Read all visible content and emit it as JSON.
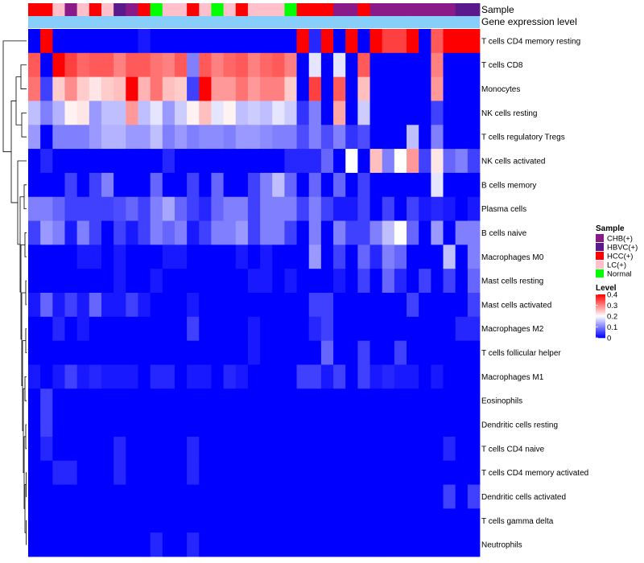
{
  "chart_data": {
    "type": "heatmap",
    "annotation_labels": {
      "sample": "Sample",
      "gene_level": "Gene expression level"
    },
    "rows": [
      "T cells CD4 memory resting",
      "T cells CD8",
      "Monocytes",
      "NK cells resting",
      "T cells regulatory  Tregs",
      "NK cells activated",
      "B cells memory",
      "Plasma cells",
      "B cells naive",
      "Macrophages M0",
      "Mast cells resting",
      "Mast cells activated",
      "Macrophages M2",
      "T cells follicular helper",
      "Macrophages M1",
      "Eosinophils",
      "Dendritic cells resting",
      "T cells CD4 naive",
      "T cells CD4 memory activated",
      "Dendritic cells activated",
      "T cells gamma delta",
      "Neutrophils"
    ],
    "sample_groups": [
      "HCC(+)",
      "HCC(+)",
      "LC(+)",
      "CHB(+)",
      "LC(+)",
      "HCC(+)",
      "LC(+)",
      "HBVC(+)",
      "CHB(+)",
      "HCC(+)",
      "Normal",
      "LC(+)",
      "LC(+)",
      "HCC(+)",
      "LC(+)",
      "Normal",
      "LC(+)",
      "HCC(+)",
      "LC(+)",
      "LC(+)",
      "LC(+)",
      "Normal",
      "HCC(+)",
      "HCC(+)",
      "HCC(+)",
      "CHB(+)",
      "CHB(+)",
      "HCC(+)",
      "CHB(+)",
      "CHB(+)",
      "CHB(+)",
      "CHB(+)",
      "CHB(+)",
      "CHB(+)",
      "CHB(+)",
      "HBVC(+)",
      "HBVC(+)"
    ],
    "values": [
      [
        0.0,
        0.4,
        0.0,
        0.0,
        0.0,
        0.0,
        0.0,
        0.0,
        0.0,
        0.02,
        0.0,
        0.0,
        0.0,
        0.0,
        0.0,
        0.0,
        0.0,
        0.0,
        0.0,
        0.0,
        0.0,
        0.0,
        0.4,
        0.03,
        0.4,
        0.0,
        0.4,
        0.0,
        0.4,
        0.35,
        0.35,
        0.4,
        0.0,
        0.33,
        0.4,
        0.4,
        0.4
      ],
      [
        0.33,
        0.0,
        0.4,
        0.35,
        0.32,
        0.33,
        0.33,
        0.3,
        0.33,
        0.33,
        0.31,
        0.3,
        0.33,
        0.1,
        0.33,
        0.3,
        0.32,
        0.33,
        0.3,
        0.32,
        0.33,
        0.3,
        0.0,
        0.18,
        0.0,
        0.18,
        0.0,
        0.33,
        0.0,
        0.0,
        0.0,
        0.0,
        0.0,
        0.3,
        0.0,
        0.0,
        0.0
      ],
      [
        0.31,
        0.05,
        0.24,
        0.29,
        0.24,
        0.22,
        0.24,
        0.25,
        0.4,
        0.26,
        0.31,
        0.25,
        0.24,
        0.05,
        0.4,
        0.28,
        0.28,
        0.31,
        0.28,
        0.3,
        0.3,
        0.24,
        0.0,
        0.35,
        0.0,
        0.33,
        0.0,
        0.25,
        0.0,
        0.0,
        0.0,
        0.0,
        0.0,
        0.28,
        0.0,
        0.0,
        0.0
      ],
      [
        0.15,
        0.1,
        0.14,
        0.21,
        0.22,
        0.12,
        0.15,
        0.15,
        0.28,
        0.15,
        0.18,
        0.12,
        0.16,
        0.21,
        0.25,
        0.18,
        0.21,
        0.15,
        0.16,
        0.15,
        0.18,
        0.16,
        0.04,
        0.1,
        0.0,
        0.27,
        0.0,
        0.16,
        0.0,
        0.0,
        0.0,
        0.0,
        0.0,
        0.05,
        0.0,
        0.0,
        0.0
      ],
      [
        0.12,
        0.0,
        0.1,
        0.1,
        0.1,
        0.12,
        0.14,
        0.14,
        0.12,
        0.12,
        0.15,
        0.1,
        0.12,
        0.1,
        0.11,
        0.11,
        0.1,
        0.12,
        0.12,
        0.11,
        0.1,
        0.1,
        0.06,
        0.1,
        0.06,
        0.1,
        0.04,
        0.06,
        0.0,
        0.0,
        0.0,
        0.15,
        0.0,
        0.1,
        0.0,
        0.0,
        0.0
      ],
      [
        0.0,
        0.03,
        0.0,
        0.0,
        0.0,
        0.0,
        0.0,
        0.0,
        0.0,
        0.0,
        0.0,
        0.03,
        0.0,
        0.0,
        0.0,
        0.0,
        0.0,
        0.0,
        0.0,
        0.0,
        0.0,
        0.03,
        0.03,
        0.03,
        0.08,
        0.0,
        0.2,
        0.0,
        0.25,
        0.1,
        0.2,
        0.28,
        0.05,
        0.22,
        0.08,
        0.1,
        0.05
      ],
      [
        0.0,
        0.0,
        0.0,
        0.05,
        0.0,
        0.05,
        0.1,
        0.0,
        0.0,
        0.0,
        0.08,
        0.0,
        0.0,
        0.05,
        0.0,
        0.08,
        0.0,
        0.0,
        0.05,
        0.1,
        0.15,
        0.08,
        0.0,
        0.08,
        0.0,
        0.08,
        0.0,
        0.05,
        0.0,
        0.0,
        0.0,
        0.0,
        0.0,
        0.18,
        0.0,
        0.0,
        0.0
      ],
      [
        0.1,
        0.1,
        0.08,
        0.05,
        0.05,
        0.05,
        0.05,
        0.06,
        0.08,
        0.05,
        0.1,
        0.13,
        0.08,
        0.05,
        0.03,
        0.08,
        0.1,
        0.1,
        0.05,
        0.1,
        0.1,
        0.1,
        0.05,
        0.1,
        0.05,
        0.02,
        0.02,
        0.05,
        0.0,
        0.05,
        0.0,
        0.05,
        0.02,
        0.03,
        0.02,
        0.0,
        0.02
      ],
      [
        0.05,
        0.12,
        0.1,
        0.02,
        0.1,
        0.05,
        0.0,
        0.05,
        0.02,
        0.05,
        0.1,
        0.08,
        0.1,
        0.02,
        0.05,
        0.1,
        0.1,
        0.12,
        0.05,
        0.1,
        0.1,
        0.05,
        0.0,
        0.1,
        0.0,
        0.1,
        0.05,
        0.05,
        0.1,
        0.15,
        0.2,
        0.08,
        0.0,
        0.12,
        0.0,
        0.1,
        0.1
      ],
      [
        0.0,
        0.0,
        0.0,
        0.0,
        0.02,
        0.02,
        0.0,
        0.02,
        0.0,
        0.0,
        0.0,
        0.02,
        0.02,
        0.0,
        0.0,
        0.0,
        0.0,
        0.02,
        0.0,
        0.02,
        0.0,
        0.0,
        0.0,
        0.12,
        0.0,
        0.05,
        0.0,
        0.08,
        0.03,
        0.1,
        0.08,
        0.0,
        0.0,
        0.0,
        0.15,
        0.0,
        0.1
      ],
      [
        0.0,
        0.0,
        0.0,
        0.0,
        0.0,
        0.0,
        0.0,
        0.02,
        0.0,
        0.0,
        0.02,
        0.0,
        0.0,
        0.0,
        0.0,
        0.0,
        0.0,
        0.0,
        0.02,
        0.02,
        0.0,
        0.02,
        0.0,
        0.0,
        0.0,
        0.02,
        0.0,
        0.05,
        0.0,
        0.08,
        0.03,
        0.0,
        0.05,
        0.0,
        0.05,
        0.0,
        0.08
      ],
      [
        0.02,
        0.08,
        0.02,
        0.05,
        0.02,
        0.08,
        0.02,
        0.02,
        0.05,
        0.02,
        0.0,
        0.0,
        0.0,
        0.02,
        0.0,
        0.0,
        0.0,
        0.0,
        0.0,
        0.0,
        0.0,
        0.0,
        0.0,
        0.05,
        0.05,
        0.0,
        0.0,
        0.0,
        0.0,
        0.0,
        0.0,
        0.05,
        0.0,
        0.0,
        0.0,
        0.0,
        0.05
      ],
      [
        0.0,
        0.0,
        0.03,
        0.0,
        0.02,
        0.0,
        0.0,
        0.0,
        0.0,
        0.0,
        0.0,
        0.0,
        0.0,
        0.05,
        0.0,
        0.0,
        0.0,
        0.0,
        0.02,
        0.0,
        0.0,
        0.0,
        0.0,
        0.03,
        0.05,
        0.0,
        0.0,
        0.0,
        0.0,
        0.0,
        0.0,
        0.0,
        0.0,
        0.0,
        0.0,
        0.03,
        0.03
      ],
      [
        0.0,
        0.0,
        0.0,
        0.0,
        0.0,
        0.0,
        0.0,
        0.0,
        0.0,
        0.0,
        0.0,
        0.0,
        0.0,
        0.0,
        0.0,
        0.0,
        0.0,
        0.0,
        0.02,
        0.0,
        0.0,
        0.0,
        0.0,
        0.0,
        0.08,
        0.0,
        0.0,
        0.05,
        0.0,
        0.0,
        0.05,
        0.0,
        0.0,
        0.0,
        0.0,
        0.0,
        0.0
      ],
      [
        0.02,
        0.0,
        0.02,
        0.05,
        0.02,
        0.03,
        0.02,
        0.02,
        0.02,
        0.0,
        0.03,
        0.03,
        0.0,
        0.02,
        0.02,
        0.0,
        0.03,
        0.02,
        0.0,
        0.0,
        0.0,
        0.0,
        0.05,
        0.05,
        0.02,
        0.05,
        0.0,
        0.05,
        0.02,
        0.03,
        0.02,
        0.02,
        0.0,
        0.02,
        0.0,
        0.0,
        0.0
      ],
      [
        0.0,
        0.05,
        0.0,
        0.0,
        0.0,
        0.0,
        0.0,
        0.0,
        0.0,
        0.0,
        0.0,
        0.0,
        0.0,
        0.0,
        0.0,
        0.0,
        0.0,
        0.0,
        0.0,
        0.0,
        0.0,
        0.0,
        0.0,
        0.0,
        0.0,
        0.0,
        0.0,
        0.0,
        0.0,
        0.0,
        0.0,
        0.0,
        0.0,
        0.0,
        0.0,
        0.0,
        0.0
      ],
      [
        0.0,
        0.05,
        0.0,
        0.0,
        0.0,
        0.0,
        0.0,
        0.0,
        0.0,
        0.0,
        0.0,
        0.0,
        0.0,
        0.0,
        0.0,
        0.0,
        0.0,
        0.0,
        0.0,
        0.0,
        0.0,
        0.0,
        0.0,
        0.0,
        0.0,
        0.0,
        0.0,
        0.0,
        0.0,
        0.0,
        0.0,
        0.0,
        0.0,
        0.0,
        0.0,
        0.0,
        0.0
      ],
      [
        0.0,
        0.03,
        0.0,
        0.0,
        0.0,
        0.0,
        0.0,
        0.03,
        0.0,
        0.0,
        0.0,
        0.0,
        0.0,
        0.03,
        0.0,
        0.0,
        0.0,
        0.0,
        0.0,
        0.0,
        0.0,
        0.0,
        0.0,
        0.0,
        0.0,
        0.0,
        0.0,
        0.0,
        0.0,
        0.0,
        0.0,
        0.0,
        0.0,
        0.0,
        0.03,
        0.0,
        0.0
      ],
      [
        0.0,
        0.0,
        0.03,
        0.03,
        0.0,
        0.0,
        0.0,
        0.03,
        0.0,
        0.0,
        0.0,
        0.0,
        0.0,
        0.03,
        0.0,
        0.0,
        0.0,
        0.0,
        0.0,
        0.0,
        0.0,
        0.0,
        0.0,
        0.0,
        0.0,
        0.0,
        0.0,
        0.0,
        0.0,
        0.0,
        0.0,
        0.0,
        0.0,
        0.0,
        0.0,
        0.0,
        0.0
      ],
      [
        0.0,
        0.0,
        0.0,
        0.0,
        0.0,
        0.0,
        0.0,
        0.0,
        0.0,
        0.0,
        0.0,
        0.0,
        0.0,
        0.0,
        0.0,
        0.0,
        0.0,
        0.0,
        0.0,
        0.0,
        0.0,
        0.0,
        0.0,
        0.0,
        0.0,
        0.0,
        0.0,
        0.0,
        0.0,
        0.0,
        0.0,
        0.0,
        0.0,
        0.0,
        0.05,
        0.0,
        0.05
      ],
      [
        0.0,
        0.0,
        0.0,
        0.0,
        0.0,
        0.0,
        0.0,
        0.0,
        0.0,
        0.0,
        0.0,
        0.0,
        0.0,
        0.0,
        0.0,
        0.0,
        0.0,
        0.0,
        0.0,
        0.0,
        0.0,
        0.0,
        0.0,
        0.0,
        0.0,
        0.0,
        0.0,
        0.0,
        0.0,
        0.0,
        0.0,
        0.0,
        0.0,
        0.0,
        0.0,
        0.0,
        0.0
      ],
      [
        0.0,
        0.0,
        0.0,
        0.0,
        0.0,
        0.0,
        0.0,
        0.0,
        0.0,
        0.0,
        0.03,
        0.0,
        0.0,
        0.03,
        0.0,
        0.0,
        0.0,
        0.0,
        0.0,
        0.0,
        0.0,
        0.0,
        0.0,
        0.0,
        0.0,
        0.0,
        0.0,
        0.0,
        0.0,
        0.0,
        0.0,
        0.0,
        0.0,
        0.0,
        0.0,
        0.0,
        0.0
      ]
    ],
    "color_scale": {
      "min": 0,
      "mid": 0.2,
      "max": 0.4,
      "low": "#0000FF",
      "midColor": "#FFFFFF",
      "high": "#FF0000"
    },
    "gene_level_bar_color": "#87CEFA",
    "legend_sample": {
      "title": "Sample",
      "items": [
        {
          "label": "CHB(+)",
          "color": "#8B1A89"
        },
        {
          "label": "HBVC(+)",
          "color": "#5B1A8C"
        },
        {
          "label": "HCC(+)",
          "color": "#FF0000"
        },
        {
          "label": "LC(+)",
          "color": "#FFC0CB"
        },
        {
          "label": "Normal",
          "color": "#00FF00"
        }
      ]
    },
    "legend_level": {
      "title": "Level",
      "ticks": [
        "0.4",
        "0.3",
        "0.2",
        "0.1",
        "0"
      ]
    }
  }
}
